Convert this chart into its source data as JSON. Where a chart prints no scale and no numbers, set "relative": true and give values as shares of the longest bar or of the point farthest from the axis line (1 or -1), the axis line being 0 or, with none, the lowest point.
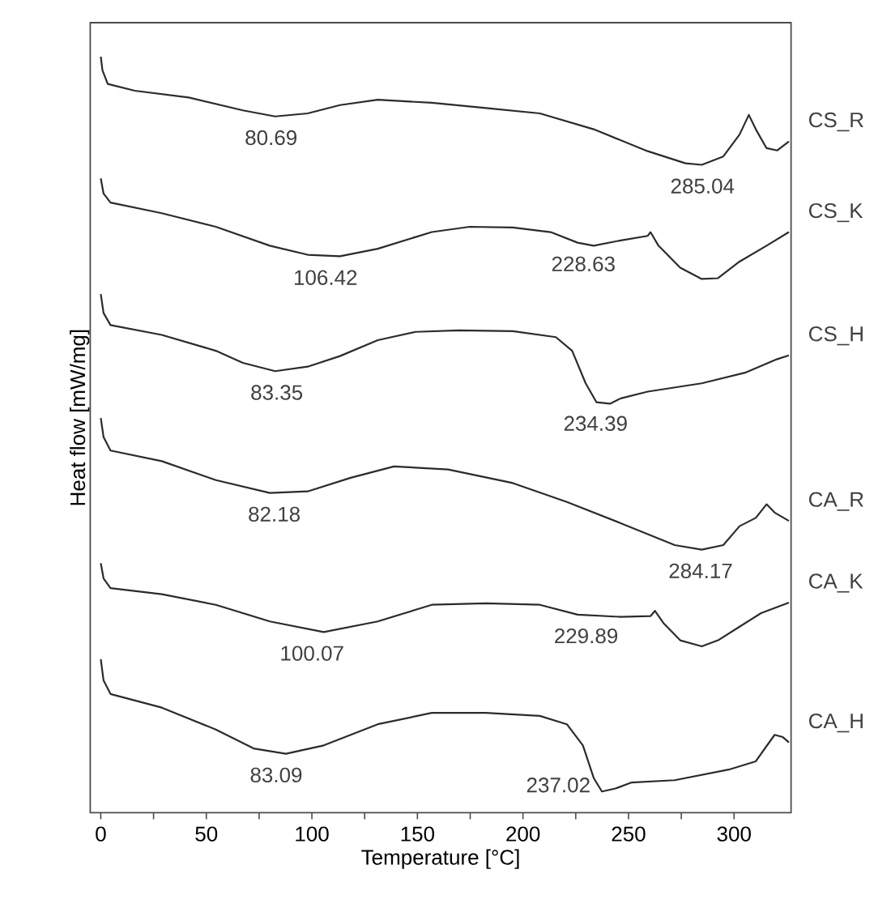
{
  "chart_data": {
    "type": "line",
    "relative": true,
    "xlabel": "Temperature [°C]",
    "ylabel": "Heat flow [mW/mg]",
    "xlim": [
      -5,
      327
    ],
    "xticks": [
      0,
      {
        "value": 25,
        "label": null
      },
      50,
      {
        "value": 75,
        "label": null
      },
      100,
      {
        "value": 125,
        "label": null
      },
      150,
      {
        "value": 175,
        "label": null
      },
      200,
      {
        "value": 225,
        "label": null
      },
      250,
      {
        "value": 275,
        "label": null
      },
      300
    ],
    "tick_labels": "x",
    "marker": "none",
    "line_style": "solid",
    "series": [
      {
        "name": "CS_R",
        "color": "#2b2b2b",
        "x": [
          0,
          0.8,
          3.3,
          16.1,
          41.7,
          67.3,
          82.6,
          98.0,
          113.3,
          131.2,
          156.8,
          182.4,
          208.0,
          233.5,
          259.1,
          277.0,
          284.7,
          294.9,
          302.6,
          307.0,
          310.3,
          315.4,
          320.5,
          326
        ],
        "values": [
          1.0,
          0.982,
          0.964,
          0.955,
          0.946,
          0.929,
          0.921,
          0.925,
          0.936,
          0.943,
          0.939,
          0.932,
          0.925,
          0.904,
          0.875,
          0.859,
          0.857,
          0.868,
          0.897,
          0.923,
          0.904,
          0.879,
          0.876,
          0.888
        ]
      },
      {
        "name": "CS_K",
        "color": "#2b2b2b",
        "x": [
          0,
          1.3,
          4.6,
          28.9,
          54.5,
          80.1,
          98.0,
          113.3,
          131.2,
          156.8,
          174.7,
          195.2,
          213.1,
          225.9,
          233.5,
          246.3,
          259.1,
          260.4,
          264.2,
          274.5,
          284.7,
          292.4,
          302.6,
          315.4,
          326
        ],
        "values": [
          0.839,
          0.819,
          0.807,
          0.793,
          0.775,
          0.75,
          0.738,
          0.736,
          0.746,
          0.768,
          0.775,
          0.774,
          0.768,
          0.754,
          0.75,
          0.757,
          0.763,
          0.768,
          0.75,
          0.721,
          0.706,
          0.707,
          0.729,
          0.75,
          0.768
        ]
      },
      {
        "name": "CS_H",
        "color": "#2b2b2b",
        "x": [
          0,
          1.3,
          4.6,
          28.9,
          54.5,
          67.3,
          82.6,
          98.0,
          113.3,
          131.2,
          149.1,
          169.6,
          195.2,
          215.6,
          223.3,
          229.7,
          234.8,
          241.2,
          246.3,
          259.1,
          284.7,
          305.2,
          320.5,
          326
        ],
        "values": [
          0.686,
          0.661,
          0.645,
          0.632,
          0.611,
          0.595,
          0.584,
          0.59,
          0.604,
          0.625,
          0.636,
          0.638,
          0.637,
          0.629,
          0.611,
          0.568,
          0.543,
          0.541,
          0.548,
          0.557,
          0.568,
          0.582,
          0.6,
          0.605
        ]
      },
      {
        "name": "CA_R",
        "color": "#2b2b2b",
        "x": [
          0,
          1.3,
          4.6,
          28.9,
          54.5,
          80.1,
          98.0,
          118.4,
          138.9,
          164.5,
          195.2,
          220.8,
          246.3,
          271.9,
          284.7,
          294.9,
          302.6,
          310.3,
          315.4,
          319.2,
          326
        ],
        "values": [
          0.522,
          0.497,
          0.479,
          0.465,
          0.44,
          0.423,
          0.425,
          0.443,
          0.458,
          0.454,
          0.436,
          0.411,
          0.383,
          0.354,
          0.348,
          0.354,
          0.379,
          0.39,
          0.408,
          0.397,
          0.386
        ]
      },
      {
        "name": "CA_K",
        "color": "#2b2b2b",
        "x": [
          0,
          1.3,
          4.6,
          28.9,
          54.5,
          80.1,
          105.6,
          131.2,
          156.8,
          182.4,
          208.0,
          225.9,
          246.3,
          260.4,
          262.5,
          266.8,
          274.5,
          284.7,
          292.4,
          302.6,
          312.8,
          326
        ],
        "values": [
          0.33,
          0.31,
          0.297,
          0.289,
          0.275,
          0.253,
          0.239,
          0.253,
          0.275,
          0.277,
          0.275,
          0.262,
          0.259,
          0.26,
          0.267,
          0.25,
          0.228,
          0.22,
          0.228,
          0.246,
          0.264,
          0.278
        ]
      },
      {
        "name": "CA_H",
        "color": "#2b2b2b",
        "x": [
          0,
          1.3,
          4.6,
          28.9,
          54.5,
          72.4,
          87.7,
          105.6,
          131.2,
          156.8,
          182.4,
          208.0,
          220.8,
          228.4,
          233.5,
          237.4,
          243.8,
          251.5,
          271.9,
          297.5,
          310.3,
          319.2,
          323.1,
          326
        ],
        "values": [
          0.203,
          0.175,
          0.157,
          0.139,
          0.11,
          0.085,
          0.078,
          0.089,
          0.117,
          0.132,
          0.132,
          0.128,
          0.117,
          0.089,
          0.046,
          0.028,
          0.032,
          0.04,
          0.043,
          0.057,
          0.068,
          0.103,
          0.1,
          0.093
        ]
      }
    ],
    "annotations": [
      {
        "text": "80.69",
        "x": 80.69,
        "y": 0.921
      },
      {
        "text": "285.04",
        "x": 285.04,
        "y": 0.857
      },
      {
        "text": "106.42",
        "x": 106.42,
        "y": 0.736
      },
      {
        "text": "228.63",
        "x": 228.63,
        "y": 0.754
      },
      {
        "text": "83.35",
        "x": 83.35,
        "y": 0.584
      },
      {
        "text": "234.39",
        "x": 234.39,
        "y": 0.543
      },
      {
        "text": "82.18",
        "x": 82.18,
        "y": 0.423
      },
      {
        "text": "284.17",
        "x": 284.17,
        "y": 0.348
      },
      {
        "text": "100.07",
        "x": 100.07,
        "y": 0.239
      },
      {
        "text": "229.89",
        "x": 229.89,
        "y": 0.262
      },
      {
        "text": "83.09",
        "x": 83.09,
        "y": 0.078
      },
      {
        "text": "237.02",
        "x": 237.02,
        "y": 0.028
      }
    ]
  }
}
